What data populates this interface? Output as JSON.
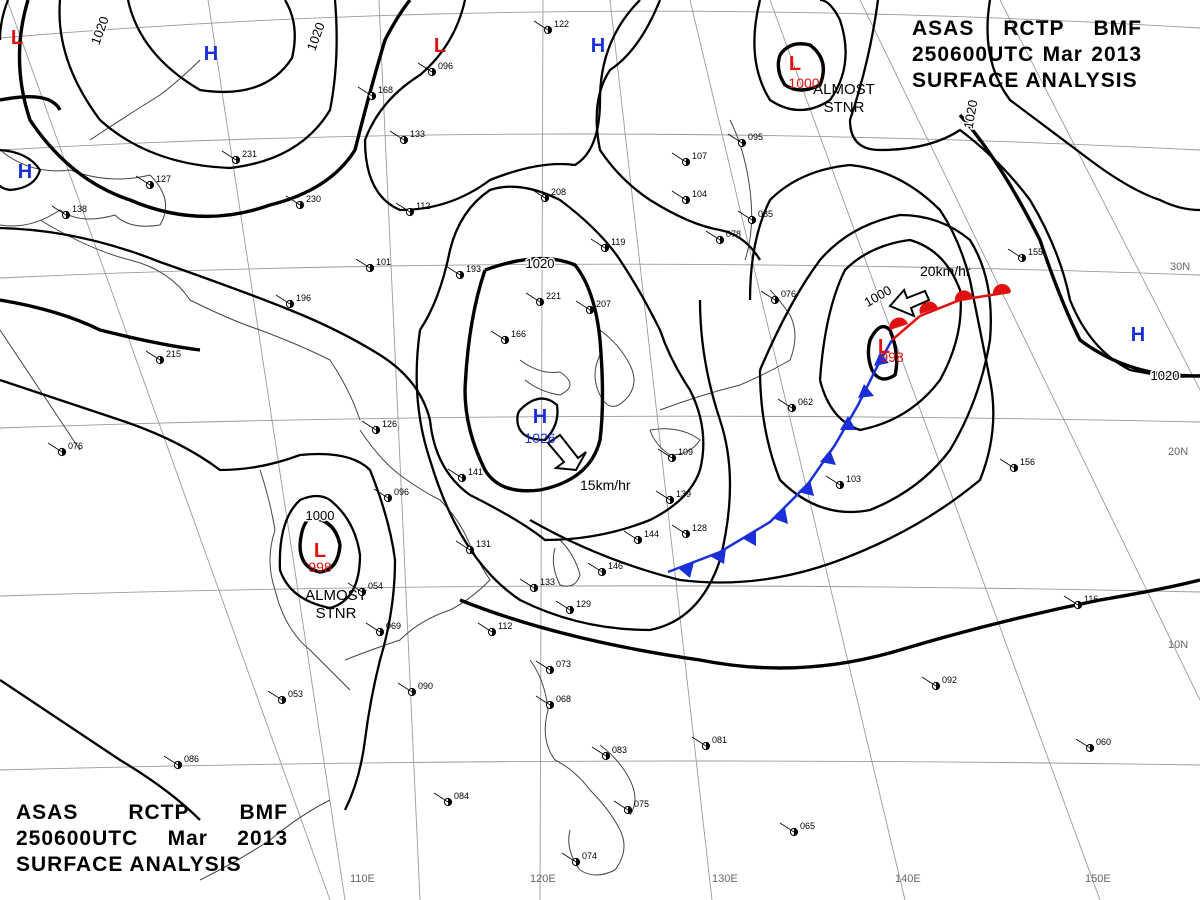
{
  "header": {
    "agency": "ASAS",
    "station": "RCTP",
    "org": "BMF",
    "datetime": "250600UTC",
    "month": "Mar",
    "year": "2013",
    "product": "SURFACE ANALYSIS"
  },
  "colors": {
    "high": "#1a2fd8",
    "low": "#e01010",
    "cold_front": "#1a2fd8",
    "warm_front": "#e01010",
    "isobar": "#000000",
    "grid": "#9a9a9a"
  },
  "longitude_labels": [
    "110E",
    "120E",
    "130E",
    "140E",
    "150E"
  ],
  "latitude_labels": [
    "30N",
    "20N",
    "10N"
  ],
  "pressure_systems": [
    {
      "type": "H",
      "pressure": "1026",
      "motion": "15km/hr"
    },
    {
      "type": "L",
      "pressure": "998",
      "motion": "20km/hr"
    },
    {
      "type": "L",
      "pressure": "998",
      "status": "ALMOST STNR"
    },
    {
      "type": "L",
      "pressure": "1000",
      "status": "ALMOST STNR"
    },
    {
      "type": "H"
    },
    {
      "type": "H"
    },
    {
      "type": "H"
    },
    {
      "type": "H"
    },
    {
      "type": "L"
    },
    {
      "type": "L"
    }
  ],
  "isobar_labels": [
    "1020",
    "1020",
    "1020",
    "1020",
    "1020",
    "1000",
    "1000"
  ],
  "station_values": [
    "122",
    "096",
    "168",
    "133",
    "231",
    "127",
    "138",
    "230",
    "112",
    "101",
    "196",
    "193",
    "221",
    "207",
    "215",
    "166",
    "208",
    "119",
    "107",
    "104",
    "095",
    "078",
    "085",
    "076",
    "062",
    "155",
    "126",
    "141",
    "096",
    "131",
    "133",
    "112",
    "129",
    "146",
    "144",
    "128",
    "139",
    "109",
    "103",
    "156",
    "054",
    "069",
    "090",
    "053",
    "073",
    "068",
    "081",
    "083",
    "084",
    "075",
    "065",
    "074",
    "116",
    "092",
    "060",
    "086",
    "076"
  ]
}
